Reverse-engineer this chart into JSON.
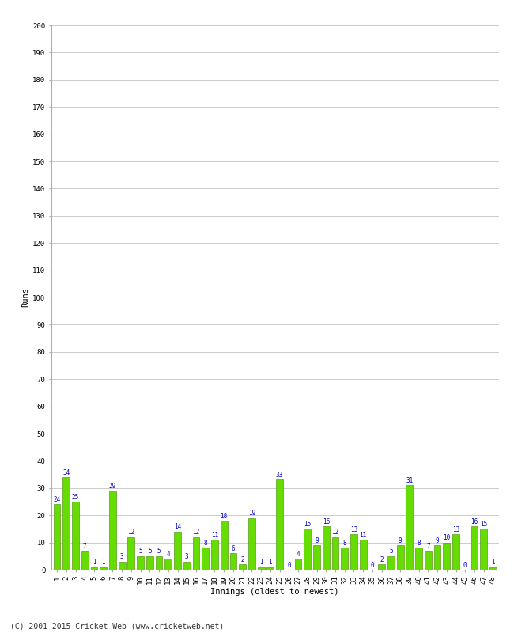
{
  "innings": [
    1,
    2,
    3,
    4,
    5,
    6,
    7,
    8,
    9,
    10,
    11,
    12,
    13,
    14,
    15,
    16,
    17,
    18,
    19,
    20,
    21,
    22,
    23,
    24,
    25,
    26,
    27,
    28,
    29,
    30,
    31,
    32,
    33,
    34,
    35,
    36,
    37,
    38,
    39,
    40,
    41,
    42,
    43,
    44,
    45,
    46,
    47,
    48
  ],
  "runs": [
    24,
    34,
    25,
    7,
    1,
    1,
    29,
    3,
    12,
    5,
    5,
    5,
    4,
    14,
    3,
    12,
    8,
    11,
    18,
    6,
    2,
    19,
    1,
    1,
    33,
    0,
    4,
    15,
    9,
    16,
    12,
    8,
    13,
    11,
    0,
    2,
    5,
    9,
    31,
    8,
    7,
    9,
    10,
    13,
    0,
    16,
    15,
    1
  ],
  "bar_color": "#66dd00",
  "bar_edge_color": "#448800",
  "label_color": "#0000cc",
  "ylabel": "Runs",
  "xlabel": "Innings (oldest to newest)",
  "ylim": [
    0,
    200
  ],
  "yticks": [
    0,
    10,
    20,
    30,
    40,
    50,
    60,
    70,
    80,
    90,
    100,
    110,
    120,
    130,
    140,
    150,
    160,
    170,
    180,
    190,
    200
  ],
  "grid_color": "#cccccc",
  "background_color": "#ffffff",
  "footer": "(C) 2001-2015 Cricket Web (www.cricketweb.net)",
  "label_fontsize": 5.5,
  "tick_fontsize": 6.5,
  "axis_label_fontsize": 7.5
}
